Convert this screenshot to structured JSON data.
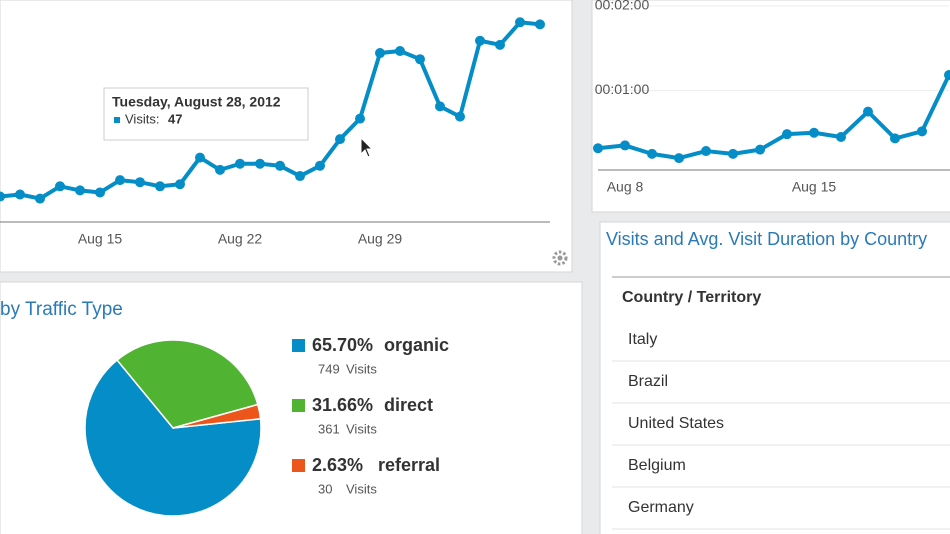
{
  "chart_data": [
    {
      "type": "line",
      "categories": [
        null,
        null,
        null,
        null,
        null,
        "Aug 15",
        null,
        null,
        null,
        null,
        null,
        null,
        "Aug 22",
        null,
        null,
        null,
        null,
        null,
        null,
        "Aug 29",
        null,
        null,
        null,
        null,
        null,
        null,
        null,
        null
      ],
      "values": [
        9,
        10,
        8,
        14,
        12,
        11,
        17,
        16,
        14,
        15,
        28,
        22,
        25,
        25,
        24,
        19,
        24,
        37,
        47,
        79,
        80,
        76,
        53,
        48,
        85,
        83,
        94,
        93
      ],
      "color": "#058dc7",
      "ylim": [
        0,
        100
      ],
      "tooltip": {
        "title": "Tuesday, August 28, 2012",
        "label": "Visits:"
      }
    },
    {
      "type": "line",
      "categories": [
        null,
        "Aug 8",
        null,
        null,
        null,
        null,
        null,
        null,
        "Aug 15",
        null,
        null,
        null,
        null,
        null
      ],
      "values": [
        19,
        21,
        15,
        12,
        17,
        15,
        18,
        29,
        30,
        27,
        45,
        26,
        31,
        71
      ],
      "color": "#058dc7",
      "ylim": [
        0,
        120
      ],
      "yticks": [
        {
          "value": 60,
          "label": "00:01:00"
        },
        {
          "value": 120,
          "label": "00:02:00"
        }
      ]
    },
    {
      "type": "pie",
      "title": "by Traffic Type",
      "categories": [
        "organic",
        "direct",
        "referral"
      ],
      "values": [
        65.7,
        31.66,
        2.63
      ],
      "value_labels": [
        "65.70%",
        "31.66%",
        "2.63%"
      ],
      "colors": [
        "#058dc7",
        "#50b432",
        "#ed561b"
      ],
      "visits": [
        749,
        361,
        30
      ],
      "visits_label": "Visits"
    }
  ],
  "table": {
    "title": "Visits and Avg. Visit Duration by Country",
    "header": "Country / Territory",
    "rows": [
      "Italy",
      "Brazil",
      "United States",
      "Belgium",
      "Germany"
    ]
  }
}
